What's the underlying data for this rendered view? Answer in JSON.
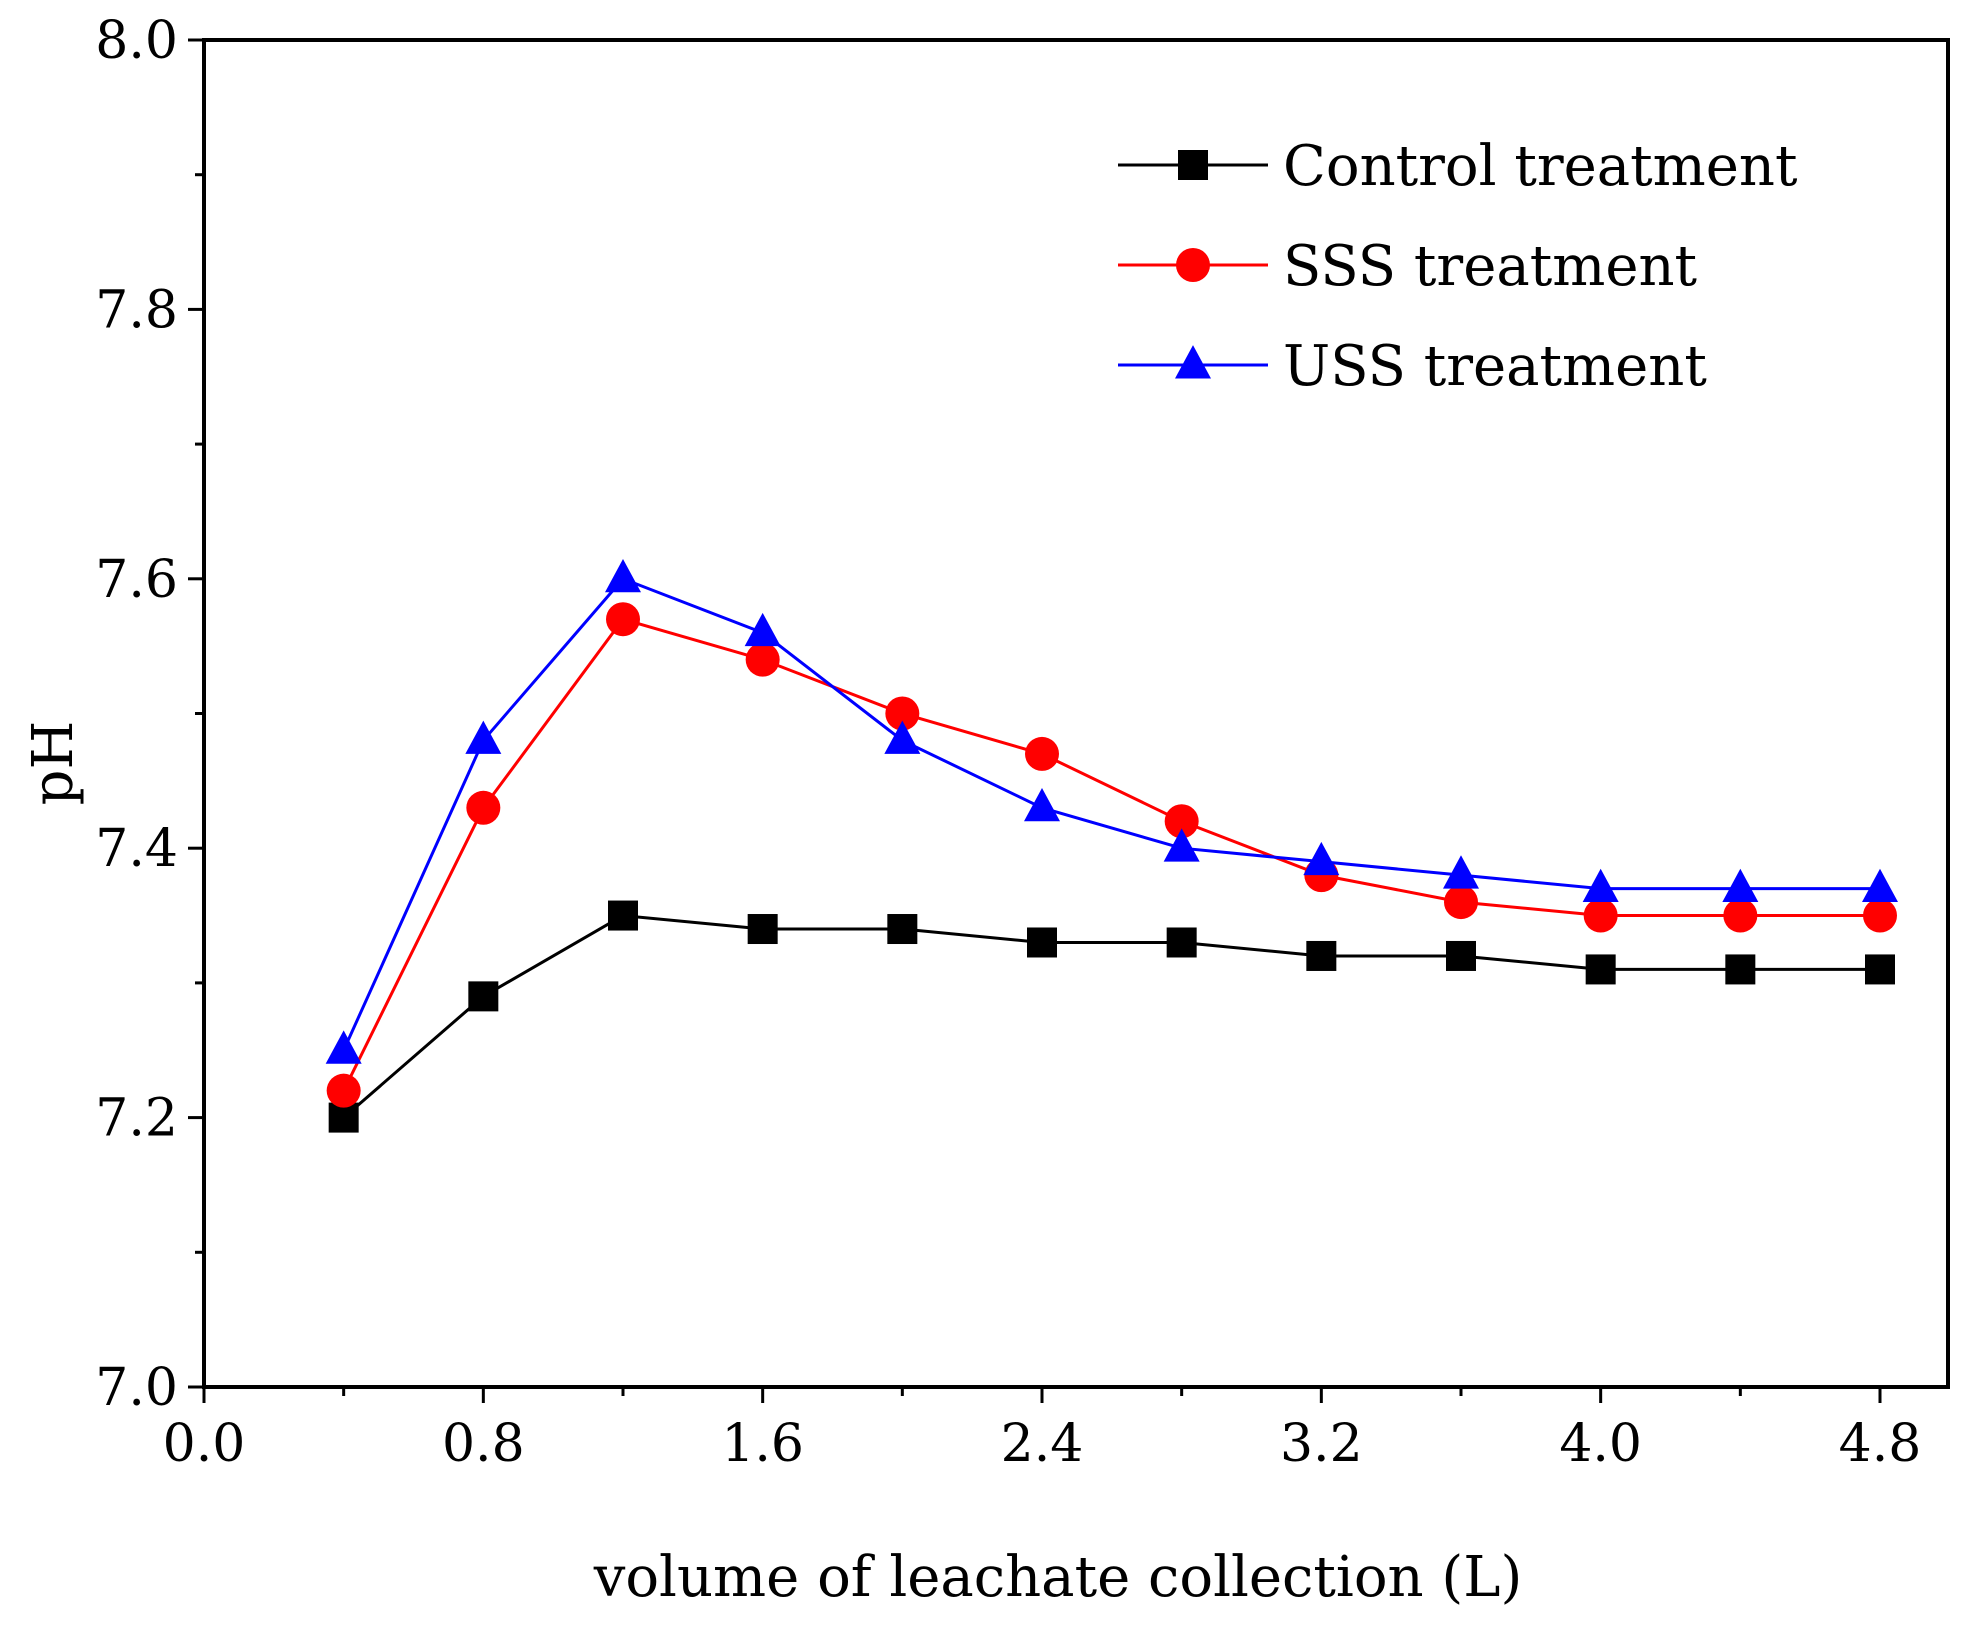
{
  "chart_data": {
    "type": "line",
    "title": "",
    "xlabel": "volume of leachate collection (L)",
    "ylabel": "pH",
    "xlim": [
      0.0,
      4.9
    ],
    "ylim": [
      7.0,
      8.0
    ],
    "x_ticks": [
      "0.0",
      "0.8",
      "1.6",
      "2.4",
      "3.2",
      "4.0",
      "4.8"
    ],
    "y_ticks": [
      "7.0",
      "7.2",
      "7.4",
      "7.6",
      "7.8",
      "8.0"
    ],
    "x": [
      0.4,
      0.8,
      1.2,
      1.6,
      2.0,
      2.4,
      2.8,
      3.2,
      3.6,
      4.0,
      4.4,
      4.8
    ],
    "grid": false,
    "legend_position": "top-right",
    "series": [
      {
        "name": "Control treatment",
        "color": "#000000",
        "marker": "square",
        "values": [
          7.2,
          7.29,
          7.35,
          7.34,
          7.34,
          7.33,
          7.33,
          7.32,
          7.32,
          7.31,
          7.31,
          7.31
        ]
      },
      {
        "name": "SSS treatment",
        "color": "#ff0000",
        "marker": "circle",
        "values": [
          7.22,
          7.43,
          7.57,
          7.54,
          7.5,
          7.47,
          7.42,
          7.38,
          7.36,
          7.35,
          7.35,
          7.35
        ]
      },
      {
        "name": "USS treatment",
        "color": "#0000ff",
        "marker": "triangle",
        "values": [
          7.25,
          7.48,
          7.6,
          7.56,
          7.48,
          7.43,
          7.4,
          7.39,
          7.38,
          7.37,
          7.37,
          7.37
        ]
      }
    ]
  }
}
